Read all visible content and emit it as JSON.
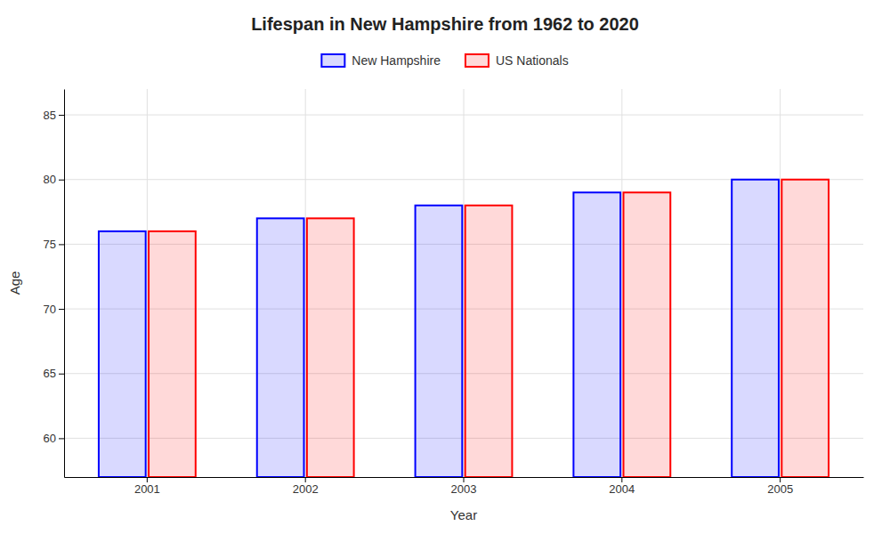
{
  "chart_data": {
    "type": "bar",
    "title": "Lifespan in New Hampshire from 1962 to 2020",
    "x_label": "Year",
    "y_label": "Age",
    "categories": [
      "2001",
      "2002",
      "2003",
      "2004",
      "2005"
    ],
    "series": [
      {
        "name": "New Hampshire",
        "color": "#0000ff",
        "values": [
          76,
          77,
          78,
          79,
          80
        ]
      },
      {
        "name": "US Nationals",
        "color": "#ff0000",
        "values": [
          76,
          77,
          78,
          79,
          80
        ]
      }
    ],
    "ylim": [
      57,
      87
    ],
    "yticks": [
      60,
      65,
      70,
      75,
      80,
      85
    ],
    "grid": true,
    "legend": "top"
  }
}
